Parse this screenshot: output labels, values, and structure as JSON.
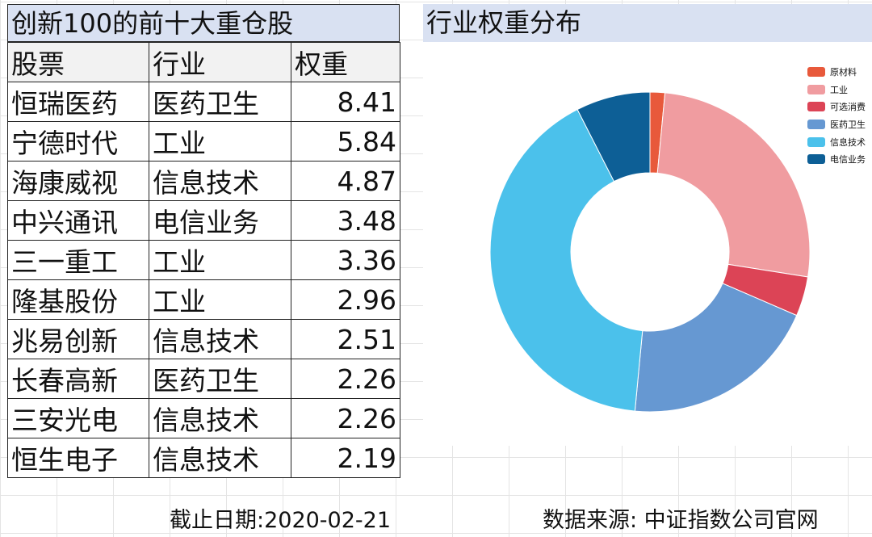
{
  "table": {
    "title": "创新100的前十大重仓股",
    "headers": [
      "股票",
      "行业",
      "权重"
    ],
    "rows": [
      {
        "name": "恒瑞医药",
        "industry": "医药卫生",
        "weight": "8.41"
      },
      {
        "name": "宁德时代",
        "industry": "工业",
        "weight": "5.84"
      },
      {
        "name": "海康威视",
        "industry": "信息技术",
        "weight": "4.87"
      },
      {
        "name": "中兴通讯",
        "industry": "电信业务",
        "weight": "3.48"
      },
      {
        "name": "三一重工",
        "industry": "工业",
        "weight": "3.36"
      },
      {
        "name": "隆基股份",
        "industry": "工业",
        "weight": "2.96"
      },
      {
        "name": "兆易创新",
        "industry": "信息技术",
        "weight": "2.51"
      },
      {
        "name": "长春高新",
        "industry": "医药卫生",
        "weight": "2.26"
      },
      {
        "name": "三安光电",
        "industry": "信息技术",
        "weight": "2.26"
      },
      {
        "name": "恒生电子",
        "industry": "信息技术",
        "weight": "2.19"
      }
    ]
  },
  "chart_data": {
    "type": "pie",
    "title": "行业权重分布",
    "donut": true,
    "legend_position": "top-right",
    "categories": [
      "原材料",
      "工业",
      "可选消费",
      "医药卫生",
      "信息技术",
      "电信业务"
    ],
    "values": [
      1.5,
      26.0,
      4.0,
      20.0,
      41.0,
      7.5
    ],
    "colors": [
      "#e8593b",
      "#f09ca0",
      "#dc4456",
      "#6698d2",
      "#4bc1eb",
      "#0d5f96"
    ]
  },
  "footer": {
    "date": "截止日期:2020-02-21",
    "source": "数据来源: 中证指数公司官网"
  }
}
